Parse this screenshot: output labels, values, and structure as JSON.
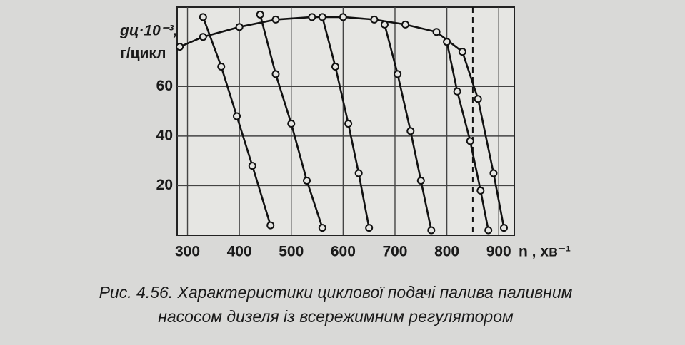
{
  "chart_data": {
    "type": "line",
    "ylabel": [
      "gц·10⁻³,",
      "г/цикл"
    ],
    "xlabel": "n , хв⁻¹",
    "caption": [
      "Рис. 4.56. Характеристики циклової подачі палива паливним",
      "насосом дизеля із всережимним регулятором"
    ],
    "xlim": [
      280,
      930
    ],
    "ylim": [
      0,
      92
    ],
    "xticks": [
      300,
      400,
      500,
      600,
      700,
      800,
      900
    ],
    "yticks": [
      20,
      40,
      60
    ],
    "grid": true,
    "vline": {
      "x": 850,
      "style": "dashed"
    },
    "series": [
      {
        "color": "#111111",
        "x": [
          285,
          330,
          400,
          470,
          540,
          600,
          660,
          720,
          780,
          830,
          860,
          890,
          910
        ],
        "values": [
          76,
          80,
          84,
          87,
          88,
          88,
          87,
          85,
          82,
          74,
          55,
          25,
          3
        ]
      },
      {
        "color": "#111111",
        "x": [
          330,
          365,
          395,
          425,
          460
        ],
        "values": [
          88,
          68,
          48,
          28,
          4
        ]
      },
      {
        "color": "#111111",
        "x": [
          440,
          470,
          500,
          530,
          560
        ],
        "values": [
          89,
          65,
          45,
          22,
          3
        ]
      },
      {
        "color": "#111111",
        "x": [
          560,
          585,
          610,
          630,
          650
        ],
        "values": [
          88,
          68,
          45,
          25,
          3
        ]
      },
      {
        "color": "#111111",
        "x": [
          680,
          705,
          730,
          750,
          770
        ],
        "values": [
          85,
          65,
          42,
          22,
          2
        ]
      },
      {
        "color": "#111111",
        "x": [
          800,
          820,
          845,
          865,
          880
        ],
        "values": [
          78,
          58,
          38,
          18,
          2
        ]
      }
    ]
  }
}
